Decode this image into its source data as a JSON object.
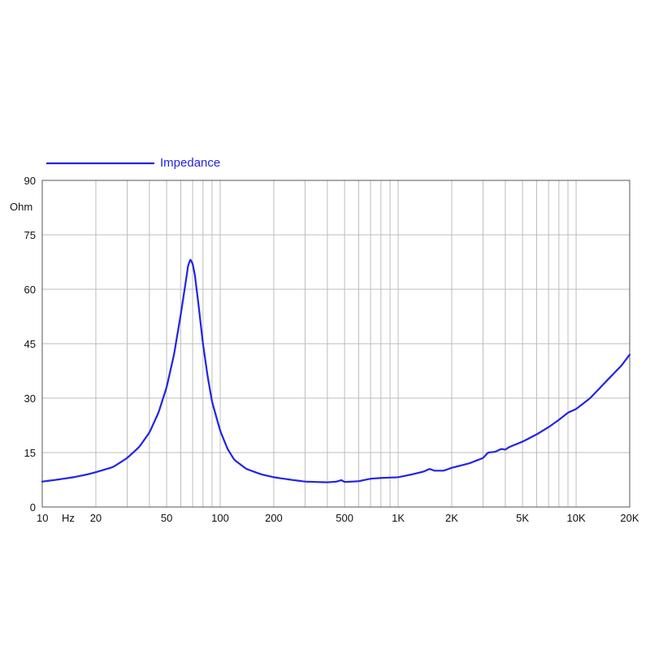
{
  "chart_data": {
    "type": "line",
    "x_scale": "log",
    "grid": true,
    "legend_position": "top-left",
    "xlim": [
      10,
      20000
    ],
    "ylim": [
      0,
      90
    ],
    "ylabel": "Ohm",
    "xlabel": "Hz",
    "y_ticks": [
      0,
      15,
      30,
      45,
      60,
      75,
      90
    ],
    "y_tick_labels": [
      "0",
      "15",
      "30",
      "45",
      "60",
      "75",
      "90"
    ],
    "x_tick_labels": [
      {
        "value": 10,
        "label": "10"
      },
      {
        "value": 20,
        "label": "20"
      },
      {
        "value": 50,
        "label": "50"
      },
      {
        "value": 100,
        "label": "100"
      },
      {
        "value": 200,
        "label": "200"
      },
      {
        "value": 500,
        "label": "500"
      },
      {
        "value": 1000,
        "label": "1K"
      },
      {
        "value": 2000,
        "label": "2K"
      },
      {
        "value": 5000,
        "label": "5K"
      },
      {
        "value": 10000,
        "label": "10K"
      },
      {
        "value": 20000,
        "label": "20K"
      }
    ],
    "series": [
      {
        "name": "Impedance",
        "color": "#2323e6",
        "points": [
          [
            10,
            7.0
          ],
          [
            12,
            7.5
          ],
          [
            15,
            8.2
          ],
          [
            18,
            9.0
          ],
          [
            20,
            9.6
          ],
          [
            25,
            11.0
          ],
          [
            30,
            13.5
          ],
          [
            35,
            16.5
          ],
          [
            40,
            20.5
          ],
          [
            45,
            26.0
          ],
          [
            50,
            33.0
          ],
          [
            55,
            42.0
          ],
          [
            60,
            53.0
          ],
          [
            64,
            62.0
          ],
          [
            66,
            66.5
          ],
          [
            68,
            68.2
          ],
          [
            70,
            67.0
          ],
          [
            72,
            64.0
          ],
          [
            75,
            57.0
          ],
          [
            80,
            45.0
          ],
          [
            85,
            36.0
          ],
          [
            90,
            29.0
          ],
          [
            100,
            21.0
          ],
          [
            110,
            16.0
          ],
          [
            120,
            13.0
          ],
          [
            140,
            10.5
          ],
          [
            170,
            9.0
          ],
          [
            200,
            8.2
          ],
          [
            250,
            7.5
          ],
          [
            300,
            7.0
          ],
          [
            400,
            6.8
          ],
          [
            450,
            7.0
          ],
          [
            480,
            7.4
          ],
          [
            500,
            6.9
          ],
          [
            550,
            7.0
          ],
          [
            600,
            7.1
          ],
          [
            700,
            7.8
          ],
          [
            800,
            8.0
          ],
          [
            1000,
            8.2
          ],
          [
            1200,
            9.0
          ],
          [
            1400,
            9.8
          ],
          [
            1500,
            10.5
          ],
          [
            1600,
            10.0
          ],
          [
            1800,
            10.0
          ],
          [
            2000,
            10.8
          ],
          [
            2500,
            12.0
          ],
          [
            3000,
            13.5
          ],
          [
            3200,
            15.0
          ],
          [
            3500,
            15.2
          ],
          [
            3800,
            16.0
          ],
          [
            4000,
            15.8
          ],
          [
            4200,
            16.5
          ],
          [
            5000,
            18.0
          ],
          [
            6000,
            20.0
          ],
          [
            7000,
            22.0
          ],
          [
            8000,
            24.0
          ],
          [
            9000,
            26.0
          ],
          [
            10000,
            27.0
          ],
          [
            12000,
            30.0
          ],
          [
            15000,
            35.0
          ],
          [
            18000,
            39.0
          ],
          [
            20000,
            42.0
          ]
        ]
      }
    ]
  }
}
